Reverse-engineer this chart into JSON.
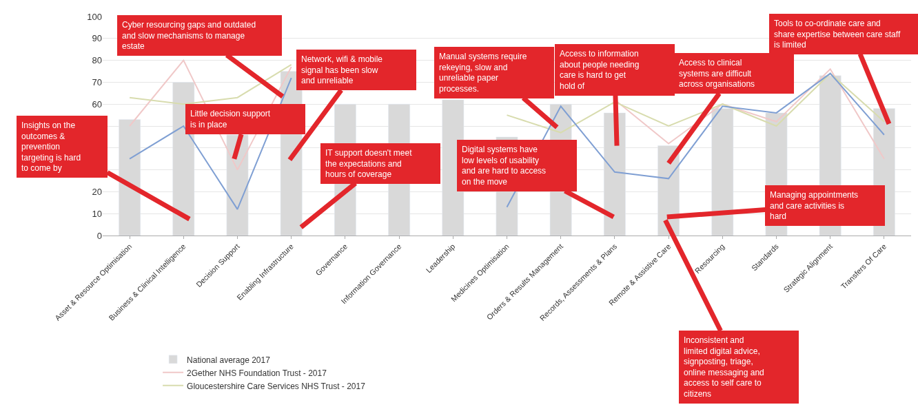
{
  "chart_data": {
    "type": "bar",
    "categories": [
      "Asset & Resource Optimisation",
      "Business & Clinical Intelligence",
      "Decision Support",
      "Enabling Infrastructure",
      "Governance",
      "Information Governance",
      "Leadership",
      "Medicines Optimisation",
      "Orders & Results Management",
      "Records, Assessments & Plans",
      "Remote & Assistive Care",
      "Resourcing",
      "Standards",
      "Strategic Alignment",
      "Transfers Of Care"
    ],
    "series": [
      {
        "name": "National average 2017",
        "color": "#d9d9d9",
        "values": [
          53,
          70,
          46,
          75,
          60,
          60,
          62,
          45,
          60,
          56,
          41,
          58,
          56,
          73,
          58
        ]
      },
      {
        "name": "2Gether NHS Foundation Trust - 2017",
        "type": "line",
        "color": "#f0c8c8",
        "values": [
          50,
          80,
          30,
          77,
          null,
          null,
          null,
          null,
          null,
          62,
          42,
          60,
          52,
          76,
          35
        ]
      },
      {
        "name": "Gloucestershire Care Services NHS Trust - 2017",
        "type": "line",
        "color": "#d8dcae",
        "values": [
          63,
          60,
          63,
          78,
          null,
          null,
          null,
          55,
          47,
          61,
          50,
          60,
          50,
          74,
          52
        ]
      },
      {
        "type": "line",
        "color": "#7f9fd3",
        "values": [
          35,
          50,
          12,
          72,
          null,
          null,
          null,
          13,
          59,
          29,
          26,
          59,
          56,
          74,
          46
        ]
      }
    ],
    "ylim": [
      0,
      100
    ],
    "yticks": [
      0,
      10,
      20,
      {
        "value": 30,
        "label": null
      },
      {
        "value": 40,
        "label": null
      },
      {
        "value": 50,
        "label": null
      },
      60,
      70,
      80,
      90,
      100
    ],
    "grid": "y",
    "legend": "bottom left",
    "marker": "none",
    "line_style": "solid",
    "annotations": [
      "Insights on the outcomes & prevention targeting is hard to come by",
      "Cyber resourcing gaps and outdated and slow mechanisms to manage estate",
      "Little decision support is in place",
      "Network, wifi & mobile signal has been slow and unreliable",
      "IT support doesn't meet the expectations and hours of coverage",
      "Manual systems require rekeying, slow and unreliable paper processes.",
      "Digital systems have low levels of usability and are hard to access on the move",
      "Access to information about people needing care is hard to get hold of",
      "Access to clinical systems are difficult across organisations",
      "Tools to co-ordinate care and share expertise between care staff is limited",
      "Managing appointments and care activities is hard",
      "Inconsistent and limited digital advice, signposting, triage, online messaging and access to self care to citizens"
    ]
  }
}
